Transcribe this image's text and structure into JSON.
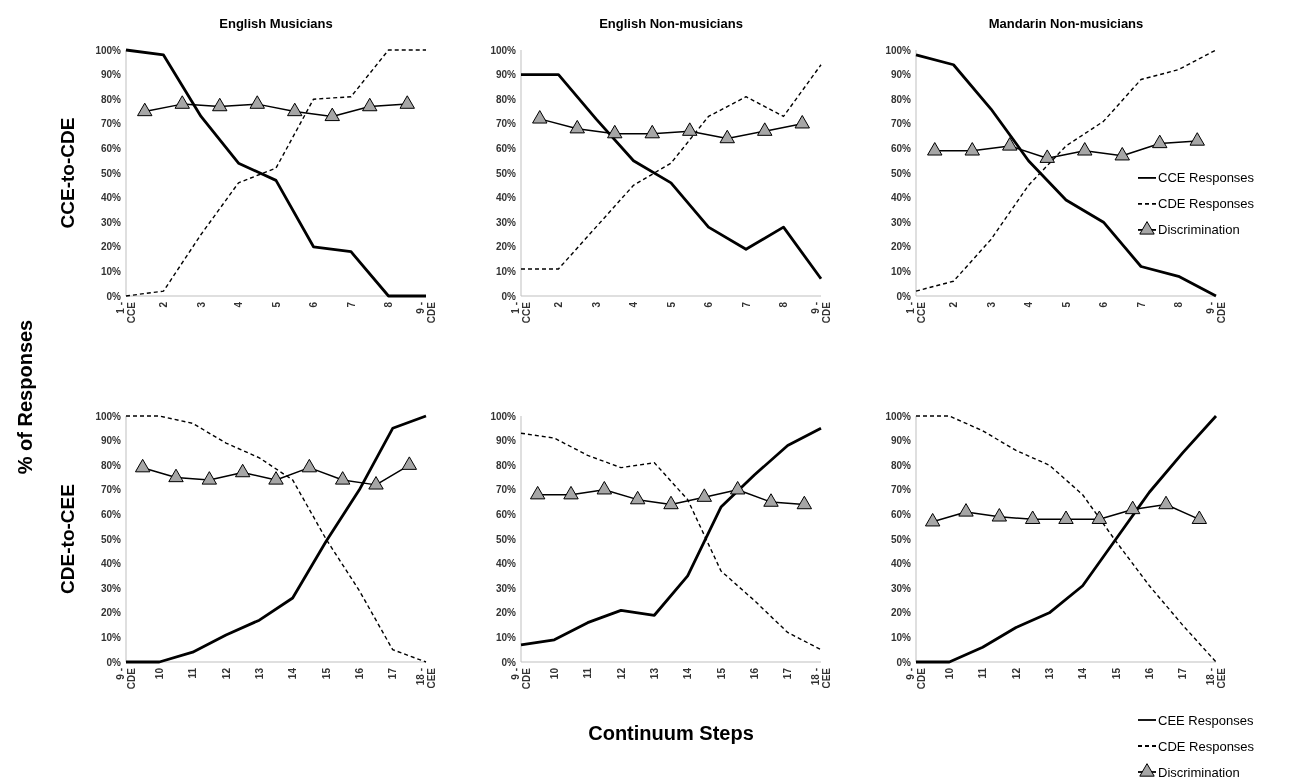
{
  "chart_data": [
    {
      "type": "line",
      "title": "English Musicians",
      "ylabel": "CCE-to-CDE",
      "annotations": [
        "% of Responses"
      ],
      "legend": false,
      "xlim": [
        1,
        9
      ],
      "xticks": [
        {
          "value": 1,
          "label": "1 - CCE"
        },
        2,
        3,
        4,
        5,
        6,
        7,
        8,
        {
          "value": 9,
          "label": "9 - CDE"
        }
      ],
      "ylim": [
        0,
        100
      ],
      "yticks": [
        {
          "value": 0,
          "label": "0%"
        },
        {
          "value": 10,
          "label": "10%"
        },
        {
          "value": 20,
          "label": "20%"
        },
        {
          "value": 30,
          "label": "30%"
        },
        {
          "value": 40,
          "label": "40%"
        },
        {
          "value": 50,
          "label": "50%"
        },
        {
          "value": 60,
          "label": "60%"
        },
        {
          "value": 70,
          "label": "70%"
        },
        {
          "value": 80,
          "label": "80%"
        },
        {
          "value": 90,
          "label": "90%"
        },
        {
          "value": 100,
          "label": "100%"
        }
      ],
      "series": [
        {
          "color": "#000000",
          "line_style": "solid",
          "marker": "none",
          "x": [
            1,
            2,
            3,
            4,
            5,
            6,
            7,
            8,
            9
          ],
          "values": [
            100,
            98,
            73,
            54,
            47,
            20,
            18,
            0,
            0
          ]
        },
        {
          "color": "#000000",
          "line_style": "dashed",
          "marker": "none",
          "x": [
            1,
            2,
            3,
            4,
            5,
            6,
            7,
            8,
            9
          ],
          "values": [
            0,
            2,
            25,
            46,
            52,
            80,
            81,
            100,
            100
          ]
        },
        {
          "color": "#a6a6a6",
          "line_style": "solid",
          "marker": "triangle",
          "x": [
            1.5,
            2.5,
            3.5,
            4.5,
            5.5,
            6.5,
            7.5,
            8.5
          ],
          "values": [
            75,
            78,
            77,
            78,
            75,
            73,
            77,
            78
          ]
        }
      ]
    },
    {
      "type": "line",
      "title": "English Non-musicians",
      "legend": false,
      "xlim": [
        1,
        9
      ],
      "xticks": [
        {
          "value": 1,
          "label": "1 - CCE"
        },
        2,
        3,
        4,
        5,
        6,
        7,
        8,
        {
          "value": 9,
          "label": "9 - CDE"
        }
      ],
      "ylim": [
        0,
        100
      ],
      "yticks": [
        {
          "value": 0,
          "label": "0%"
        },
        {
          "value": 10,
          "label": "10%"
        },
        {
          "value": 20,
          "label": "20%"
        },
        {
          "value": 30,
          "label": "30%"
        },
        {
          "value": 40,
          "label": "40%"
        },
        {
          "value": 50,
          "label": "50%"
        },
        {
          "value": 60,
          "label": "60%"
        },
        {
          "value": 70,
          "label": "70%"
        },
        {
          "value": 80,
          "label": "80%"
        },
        {
          "value": 90,
          "label": "90%"
        },
        {
          "value": 100,
          "label": "100%"
        }
      ],
      "series": [
        {
          "color": "#000000",
          "line_style": "solid",
          "marker": "none",
          "x": [
            1,
            2,
            3,
            4,
            5,
            6,
            7,
            8,
            9
          ],
          "values": [
            90,
            90,
            72,
            55,
            46,
            28,
            19,
            28,
            7
          ]
        },
        {
          "color": "#000000",
          "line_style": "dashed",
          "marker": "none",
          "x": [
            1,
            2,
            3,
            4,
            5,
            6,
            7,
            8,
            9
          ],
          "values": [
            11,
            11,
            28,
            45,
            54,
            73,
            81,
            73,
            94
          ]
        },
        {
          "color": "#a6a6a6",
          "line_style": "solid",
          "marker": "triangle",
          "x": [
            1.5,
            2.5,
            3.5,
            4.5,
            5.5,
            6.5,
            7.5,
            8.5
          ],
          "values": [
            72,
            68,
            66,
            66,
            67,
            64,
            67,
            70
          ]
        }
      ]
    },
    {
      "type": "line",
      "title": "Mandarin Non-musicians",
      "legend": "right",
      "xlim": [
        1,
        9
      ],
      "xticks": [
        {
          "value": 1,
          "label": "1 - CCE"
        },
        2,
        3,
        4,
        5,
        6,
        7,
        8,
        {
          "value": 9,
          "label": "9 - CDE"
        }
      ],
      "ylim": [
        0,
        100
      ],
      "yticks": [
        {
          "value": 0,
          "label": "0%"
        },
        {
          "value": 10,
          "label": "10%"
        },
        {
          "value": 20,
          "label": "20%"
        },
        {
          "value": 30,
          "label": "30%"
        },
        {
          "value": 40,
          "label": "40%"
        },
        {
          "value": 50,
          "label": "50%"
        },
        {
          "value": 60,
          "label": "60%"
        },
        {
          "value": 70,
          "label": "70%"
        },
        {
          "value": 80,
          "label": "80%"
        },
        {
          "value": 90,
          "label": "90%"
        },
        {
          "value": 100,
          "label": "100%"
        }
      ],
      "series": [
        {
          "name": "CCE Responses",
          "color": "#000000",
          "line_style": "solid",
          "marker": "none",
          "x": [
            1,
            2,
            3,
            4,
            5,
            6,
            7,
            8,
            9
          ],
          "values": [
            98,
            94,
            76,
            55,
            39,
            30,
            12,
            8,
            0
          ]
        },
        {
          "name": "CDE Responses",
          "color": "#000000",
          "line_style": "dashed",
          "marker": "none",
          "x": [
            1,
            2,
            3,
            4,
            5,
            6,
            7,
            8,
            9
          ],
          "values": [
            2,
            6,
            23,
            45,
            61,
            71,
            88,
            92,
            100
          ]
        },
        {
          "name": "Discrimination",
          "color": "#a6a6a6",
          "line_style": "solid",
          "marker": "triangle",
          "x": [
            1.5,
            2.5,
            3.5,
            4.5,
            5.5,
            6.5,
            7.5,
            8.5
          ],
          "values": [
            59,
            59,
            61,
            56,
            59,
            57,
            62,
            63
          ]
        }
      ]
    },
    {
      "type": "line",
      "ylabel": "CDE-to-CEE",
      "legend": false,
      "xlim": [
        9,
        18
      ],
      "xticks": [
        {
          "value": 9,
          "label": "9 - CDE"
        },
        10,
        11,
        12,
        13,
        14,
        15,
        16,
        17,
        {
          "value": 18,
          "label": "18 - CEE"
        }
      ],
      "ylim": [
        0,
        100
      ],
      "yticks": [
        {
          "value": 0,
          "label": "0%"
        },
        {
          "value": 10,
          "label": "10%"
        },
        {
          "value": 20,
          "label": "20%"
        },
        {
          "value": 30,
          "label": "30%"
        },
        {
          "value": 40,
          "label": "40%"
        },
        {
          "value": 50,
          "label": "50%"
        },
        {
          "value": 60,
          "label": "60%"
        },
        {
          "value": 70,
          "label": "70%"
        },
        {
          "value": 80,
          "label": "80%"
        },
        {
          "value": 90,
          "label": "90%"
        },
        {
          "value": 100,
          "label": "100%"
        }
      ],
      "series": [
        {
          "color": "#000000",
          "line_style": "solid",
          "marker": "none",
          "x": [
            9,
            10,
            11,
            12,
            13,
            14,
            15,
            16,
            17,
            18
          ],
          "values": [
            0,
            0,
            4,
            11,
            17,
            26,
            49,
            70,
            95,
            100
          ]
        },
        {
          "color": "#000000",
          "line_style": "dashed",
          "marker": "none",
          "x": [
            9,
            10,
            11,
            12,
            13,
            14,
            15,
            16,
            17,
            18
          ],
          "values": [
            100,
            100,
            97,
            89,
            83,
            74,
            50,
            29,
            5,
            0
          ]
        },
        {
          "color": "#a6a6a6",
          "line_style": "solid",
          "marker": "triangle",
          "x": [
            9.5,
            10.5,
            11.5,
            12.5,
            13.5,
            14.5,
            15.5,
            16.5,
            17.5
          ],
          "values": [
            79,
            75,
            74,
            77,
            74,
            79,
            74,
            72,
            80
          ]
        }
      ]
    },
    {
      "type": "line",
      "xlabel": "Continuum Steps",
      "legend": false,
      "xlim": [
        9,
        18
      ],
      "xticks": [
        {
          "value": 9,
          "label": "9 - CDE"
        },
        10,
        11,
        12,
        13,
        14,
        15,
        16,
        17,
        {
          "value": 18,
          "label": "18 - CEE"
        }
      ],
      "ylim": [
        0,
        100
      ],
      "yticks": [
        {
          "value": 0,
          "label": "0%"
        },
        {
          "value": 10,
          "label": "10%"
        },
        {
          "value": 20,
          "label": "20%"
        },
        {
          "value": 30,
          "label": "30%"
        },
        {
          "value": 40,
          "label": "40%"
        },
        {
          "value": 50,
          "label": "50%"
        },
        {
          "value": 60,
          "label": "60%"
        },
        {
          "value": 70,
          "label": "70%"
        },
        {
          "value": 80,
          "label": "80%"
        },
        {
          "value": 90,
          "label": "90%"
        },
        {
          "value": 100,
          "label": "100%"
        }
      ],
      "series": [
        {
          "color": "#000000",
          "line_style": "solid",
          "marker": "none",
          "x": [
            9,
            10,
            11,
            12,
            13,
            14,
            15,
            16,
            17,
            18
          ],
          "values": [
            7,
            9,
            16,
            21,
            19,
            35,
            63,
            76,
            88,
            95
          ]
        },
        {
          "color": "#000000",
          "line_style": "dashed",
          "marker": "none",
          "x": [
            9,
            10,
            11,
            12,
            13,
            14,
            15,
            16,
            17,
            18
          ],
          "values": [
            93,
            91,
            84,
            79,
            81,
            66,
            37,
            25,
            12,
            5
          ]
        },
        {
          "color": "#a6a6a6",
          "line_style": "solid",
          "marker": "triangle",
          "x": [
            9.5,
            10.5,
            11.5,
            12.5,
            13.5,
            14.5,
            15.5,
            16.5,
            17.5
          ],
          "values": [
            68,
            68,
            70,
            66,
            64,
            67,
            70,
            65,
            64
          ]
        }
      ]
    },
    {
      "type": "line",
      "legend": "bottom right",
      "xlim": [
        9,
        18
      ],
      "xticks": [
        {
          "value": 9,
          "label": "9 - CDE"
        },
        10,
        11,
        12,
        13,
        14,
        15,
        16,
        17,
        {
          "value": 18,
          "label": "18 - CEE"
        }
      ],
      "ylim": [
        0,
        100
      ],
      "yticks": [
        {
          "value": 0,
          "label": "0%"
        },
        {
          "value": 10,
          "label": "10%"
        },
        {
          "value": 20,
          "label": "20%"
        },
        {
          "value": 30,
          "label": "30%"
        },
        {
          "value": 40,
          "label": "40%"
        },
        {
          "value": 50,
          "label": "50%"
        },
        {
          "value": 60,
          "label": "60%"
        },
        {
          "value": 70,
          "label": "70%"
        },
        {
          "value": 80,
          "label": "80%"
        },
        {
          "value": 90,
          "label": "90%"
        },
        {
          "value": 100,
          "label": "100%"
        }
      ],
      "series": [
        {
          "name": "CEE Responses",
          "color": "#000000",
          "line_style": "solid",
          "marker": "none",
          "x": [
            9,
            10,
            11,
            12,
            13,
            14,
            15,
            16,
            17,
            18
          ],
          "values": [
            0,
            0,
            6,
            14,
            20,
            31,
            50,
            69,
            85,
            100
          ]
        },
        {
          "name": "CDE Responses",
          "color": "#000000",
          "line_style": "dashed",
          "marker": "none",
          "x": [
            9,
            10,
            11,
            12,
            13,
            14,
            15,
            16,
            17,
            18
          ],
          "values": [
            100,
            100,
            94,
            86,
            80,
            68,
            49,
            31,
            15,
            0
          ]
        },
        {
          "name": "Discrimination",
          "color": "#a6a6a6",
          "line_style": "solid",
          "marker": "triangle",
          "x": [
            9.5,
            10.5,
            11.5,
            12.5,
            13.5,
            14.5,
            15.5,
            16.5,
            17.5
          ],
          "values": [
            57,
            61,
            59,
            58,
            58,
            58,
            62,
            64,
            58
          ]
        }
      ]
    }
  ]
}
